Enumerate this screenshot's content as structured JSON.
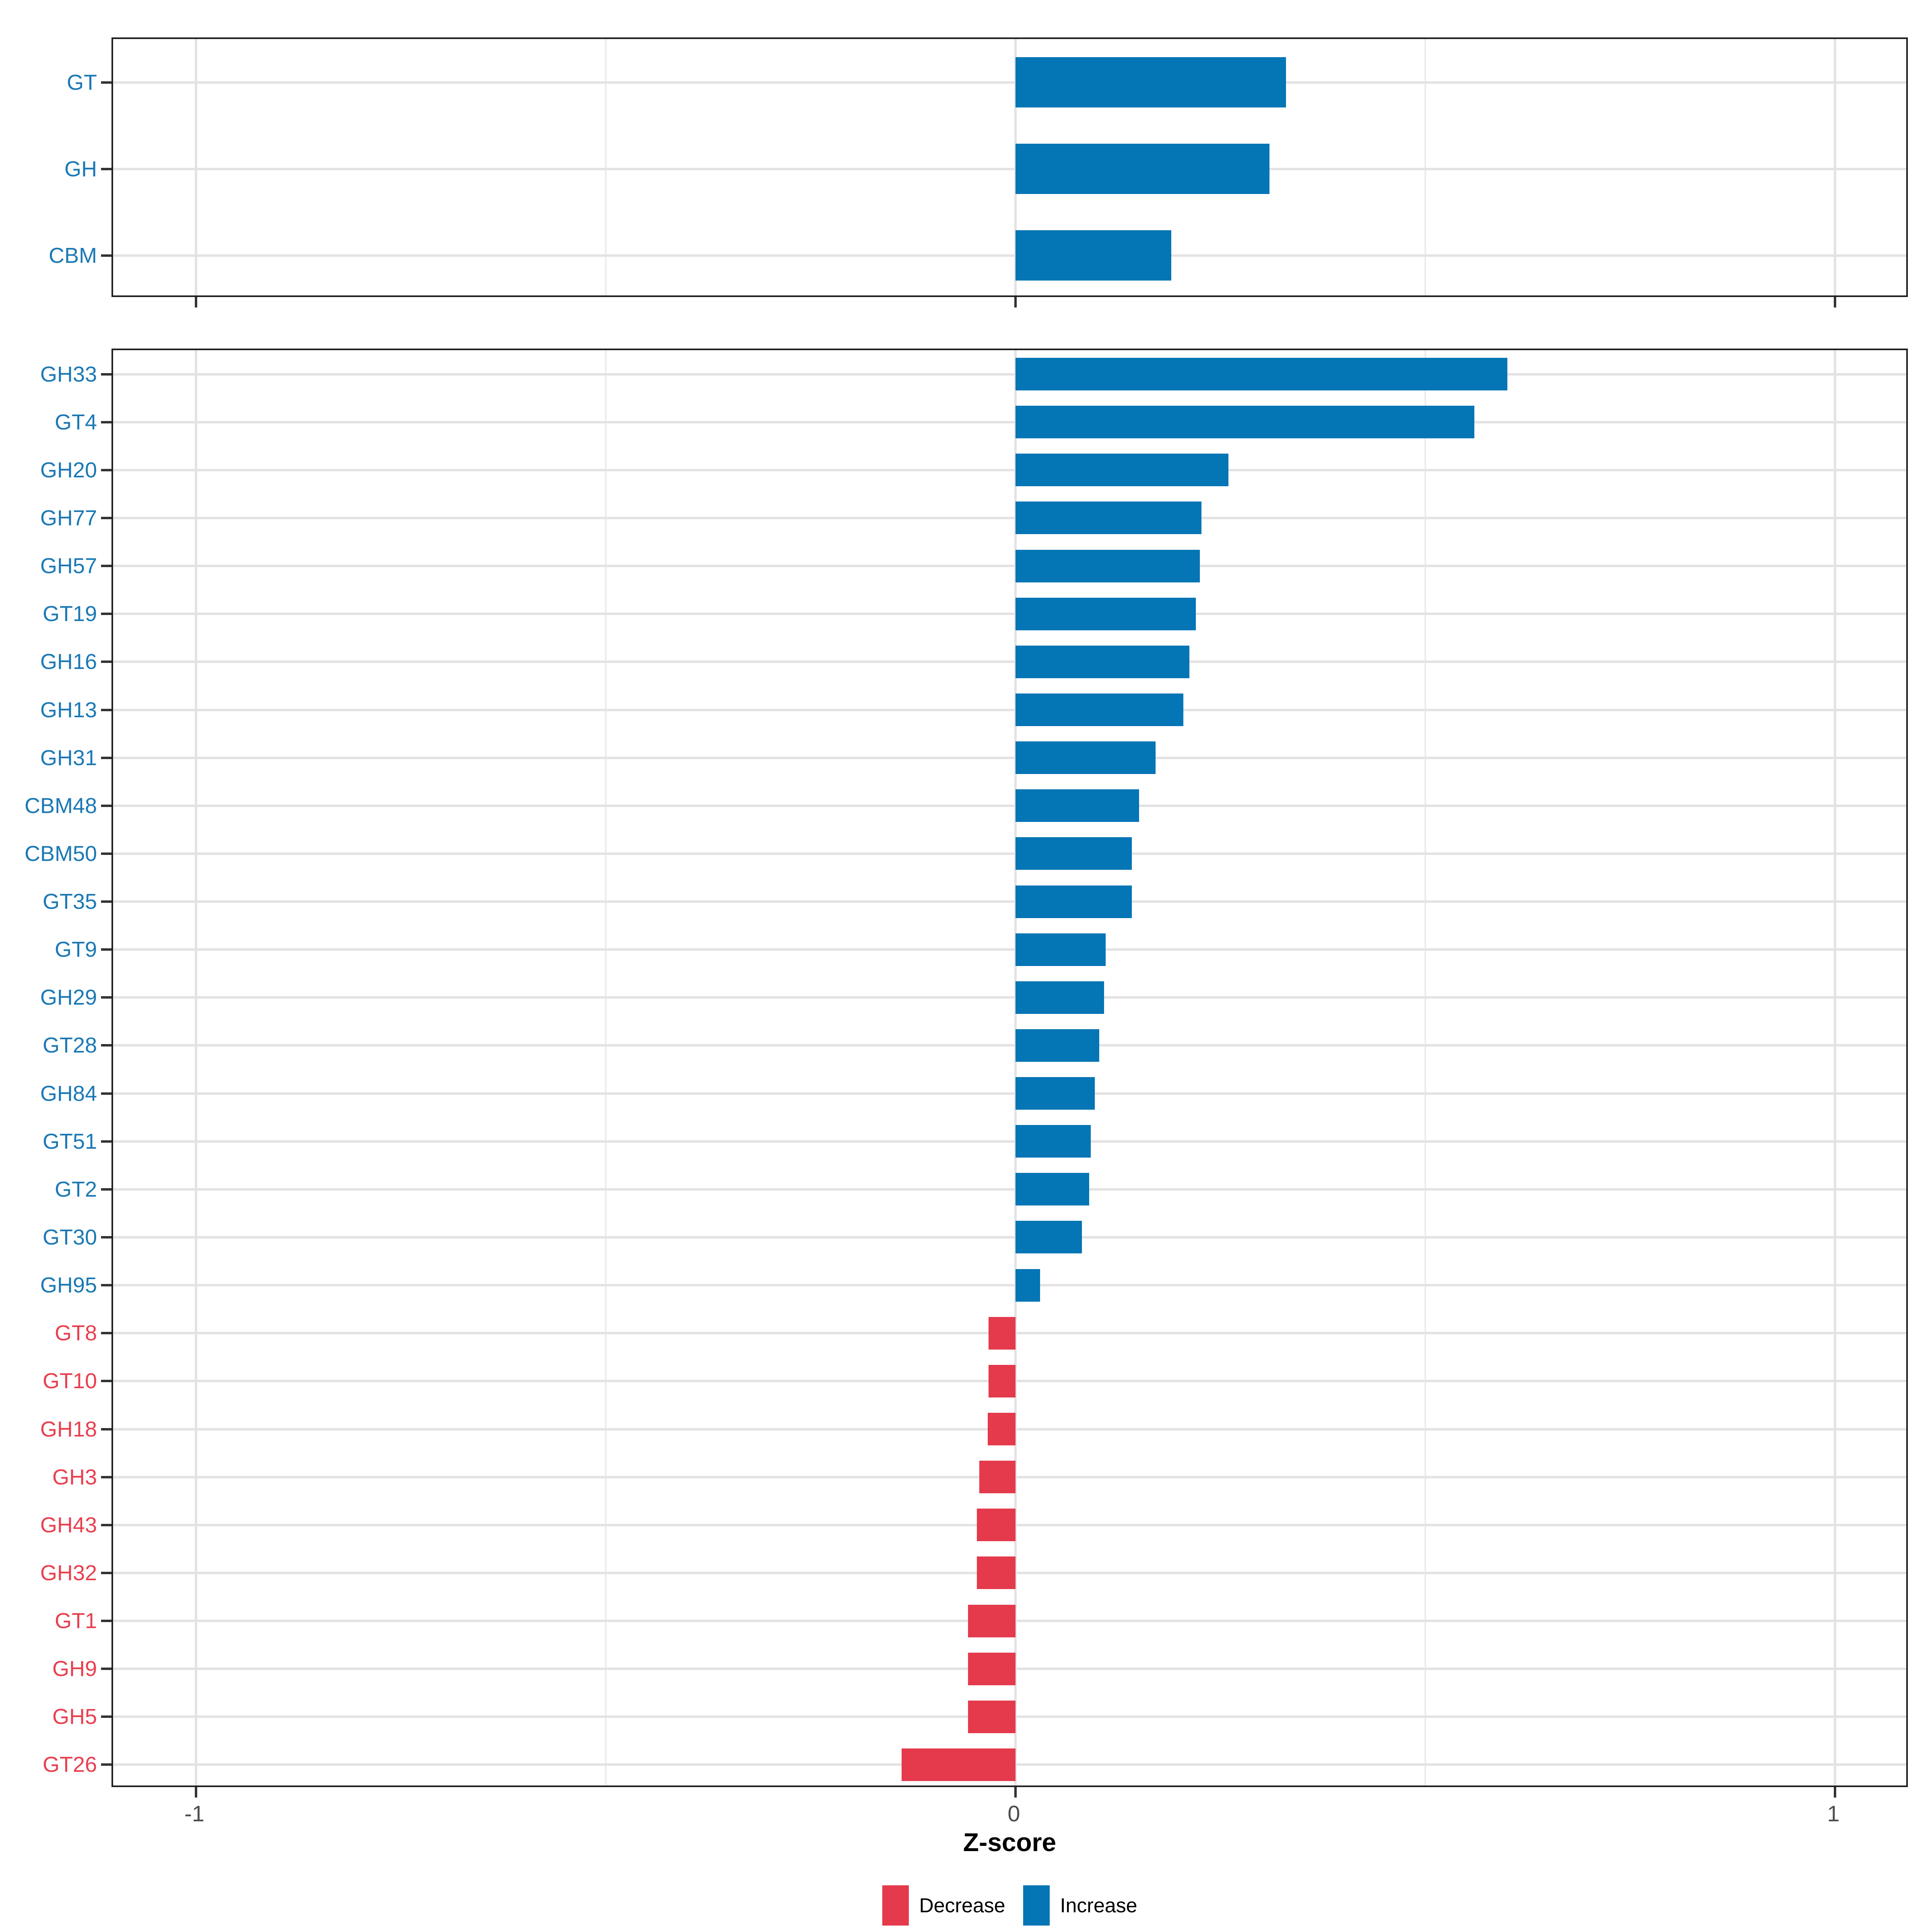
{
  "axis": {
    "xlabel": "Z-score",
    "xticks": [
      -1,
      0,
      1
    ],
    "xtick_labels": [
      "-1",
      "0",
      "1"
    ]
  },
  "legend": {
    "items": [
      {
        "label": "Decrease",
        "color": "#e43a4c"
      },
      {
        "label": "Increase",
        "color": "#0475b5"
      }
    ]
  },
  "colors": {
    "increase_bar": "#0475b5",
    "decrease_bar": "#e43a4c",
    "increase_label": "#1b79b5",
    "decrease_label": "#e8404f",
    "grid": "#e3e3e3",
    "tick_label": "#4d4d4d",
    "panel_border": "#1f1f1f"
  },
  "chart_data": {
    "type": "bar",
    "orientation": "horizontal",
    "title": "",
    "xlabel": "Z-score",
    "ylabel": "",
    "xlim": [
      -1.1,
      1.09
    ],
    "xticks": [
      -1,
      0,
      1
    ],
    "grid": true,
    "legend_position": "bottom",
    "panels": [
      {
        "name": "overall-classes",
        "categories": [
          "GT",
          "GH",
          "CBM"
        ],
        "values": [
          0.33,
          0.31,
          0.19
        ]
      },
      {
        "name": "cazy-families",
        "categories": [
          "GH33",
          "GT4",
          "GH20",
          "GH77",
          "GH57",
          "GT19",
          "GH16",
          "GH13",
          "GH31",
          "CBM48",
          "CBM50",
          "GT35",
          "GT9",
          "GH29",
          "GT28",
          "GH84",
          "GT51",
          "GT2",
          "GT30",
          "GH95",
          "GT8",
          "GT10",
          "GH18",
          "GH3",
          "GH43",
          "GH32",
          "GT1",
          "GH9",
          "GH5",
          "GT26"
        ],
        "values": [
          0.6,
          0.56,
          0.26,
          0.227,
          0.225,
          0.22,
          0.212,
          0.205,
          0.171,
          0.151,
          0.142,
          0.142,
          0.11,
          0.108,
          0.102,
          0.097,
          0.092,
          0.09,
          0.081,
          0.03,
          -0.033,
          -0.033,
          -0.034,
          -0.044,
          -0.047,
          -0.047,
          -0.058,
          -0.058,
          -0.058,
          -0.139
        ]
      }
    ]
  }
}
